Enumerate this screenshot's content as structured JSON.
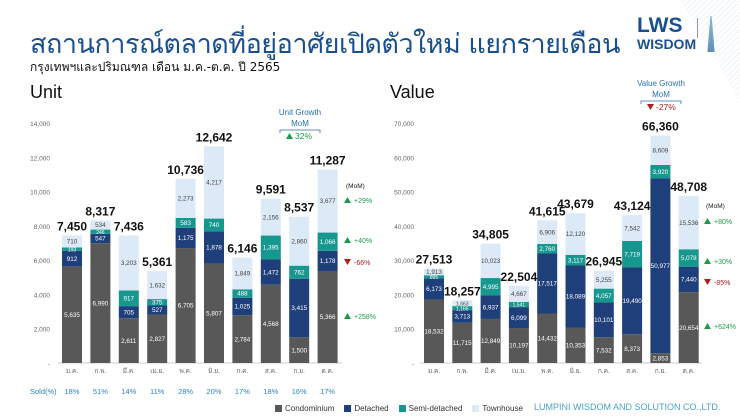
{
  "header": {
    "title": "สถานการณ์ตลาดที่อยู่อาศัยเปิดตัวใหม่ แยกรายเดือน",
    "subtitle": "กรุงเทพฯและปริมณฑล เดือน ม.ค.-ต.ค. ปี 2565",
    "logo_line1": "LWS",
    "logo_line2": "WISDOM"
  },
  "colors": {
    "Condominium": "#585858",
    "Detached": "#1f3f7a",
    "Semi-detached": "#17988f",
    "Townhouse": "#dce9f6",
    "title": "#1a4f8f",
    "up": "#1f9a4a",
    "down": "#b01e1e"
  },
  "legend": [
    "Condominium",
    "Detached",
    "Semi-detached",
    "Townhouse"
  ],
  "footer": "LUMPINI WISDOM AND SOLUTION CO.,LTD.",
  "chart_data": [
    {
      "type": "bar",
      "stacked": true,
      "title": "Unit",
      "categories": [
        "ม.ค.",
        "ก.พ.",
        "มี.ค.",
        "เม.ย.",
        "พ.ค.",
        "มิ.ย.",
        "ก.ค.",
        "ส.ค.",
        "ก.ย.",
        "ต.ค."
      ],
      "ylim": [
        0,
        14000
      ],
      "yticks": [
        "-",
        "2,000",
        "4,000",
        "6,000",
        "8,000",
        "10,000",
        "12,000",
        "14,000"
      ],
      "series": [
        {
          "name": "Condominium",
          "values": [
            5635,
            6990,
            2611,
            2827,
            6705,
            5807,
            2784,
            4568,
            1500,
            5366
          ],
          "labels": [
            "5,635",
            "6,990",
            "2,611",
            "2,827",
            "6,705",
            "5,807",
            "2,784",
            "4,568",
            "1,500",
            "5,366"
          ]
        },
        {
          "name": "Detached",
          "values": [
            912,
            547,
            705,
            527,
            1175,
            1878,
            1025,
            1472,
            3415,
            1178
          ],
          "labels": [
            "912",
            "547",
            "705",
            "527",
            "1,175",
            "1,878",
            "1,025",
            "1,472",
            "3,415",
            "1,178"
          ]
        },
        {
          "name": "Semi-detached",
          "values": [
            193,
            246,
            917,
            375,
            583,
            740,
            488,
            1395,
            762,
            1066
          ],
          "labels": [
            "193",
            "246",
            "917",
            "375",
            "583",
            "740",
            "488",
            "1,395",
            "762",
            "1,066"
          ]
        },
        {
          "name": "Townhouse",
          "values": [
            710,
            534,
            3203,
            1632,
            2273,
            4217,
            1849,
            2156,
            2860,
            3677
          ],
          "labels": [
            "710",
            "534",
            "3,203",
            "1,632",
            "2,273",
            "4,217",
            "1,849",
            "2,156",
            "2,860",
            "3,677"
          ]
        }
      ],
      "totals": [
        "7,450",
        "8,317",
        "7,436",
        "5,361",
        "10,736",
        "12,642",
        "6,146",
        "9,591",
        "8,537",
        "11,287"
      ],
      "sold_label": "Sold(%)",
      "sold": [
        "18%",
        "51%",
        "14%",
        "11%",
        "28%",
        "20%",
        "17%",
        "18%",
        "16%",
        "17%"
      ],
      "growth": {
        "title1": "Unit Growth",
        "title2": "MoM",
        "value": "32%",
        "direction": "up"
      },
      "mom_label": "(MoM)",
      "mom": [
        {
          "series": "Townhouse",
          "value": "+29%",
          "direction": "up"
        },
        {
          "series": "Semi-detached",
          "value": "+40%",
          "direction": "up"
        },
        {
          "series": "Detached",
          "value": "-66%",
          "direction": "down"
        },
        {
          "series": "Condominium",
          "value": "+258%",
          "direction": "up"
        }
      ]
    },
    {
      "type": "bar",
      "stacked": true,
      "title": "Value",
      "categories": [
        "ม.ค.",
        "ก.พ.",
        "มี.ค.",
        "เม.ย.",
        "พ.ค.",
        "มิ.ย.",
        "ก.ค.",
        "ส.ค.",
        "ก.ย.",
        "ต.ค."
      ],
      "ylim": [
        0,
        70000
      ],
      "yticks": [
        "-",
        "10,000",
        "20,000",
        "30,000",
        "40,000",
        "50,000",
        "60,000",
        "70,000"
      ],
      "series": [
        {
          "name": "Condominium",
          "values": [
            18532,
            11715,
            12849,
            10197,
            14432,
            10353,
            7532,
            8373,
            2853,
            20654
          ],
          "labels": [
            "18,532",
            "11,715",
            "12,849",
            "10,197",
            "14,432",
            "10,353",
            "7,532",
            "8,373",
            "2,853",
            "20,654"
          ]
        },
        {
          "name": "Detached",
          "values": [
            6173,
            3713,
            6937,
            6099,
            17517,
            18089,
            10101,
            19490,
            50977,
            7440
          ],
          "labels": [
            "6,173",
            "3,713",
            "6,937",
            "6,099",
            "17,517",
            "18,089",
            "10,101",
            "19,490",
            "50,977",
            "7,440"
          ]
        },
        {
          "name": "Semi-detached",
          "values": [
            895,
            1166,
            4995,
            1541,
            2760,
            3117,
            4057,
            7719,
            3920,
            5078
          ],
          "labels": [
            "895",
            "1,166",
            "4,995",
            "1,541",
            "2,760",
            "3,117",
            "4,057",
            "7,719",
            "3,920",
            "5,078"
          ]
        },
        {
          "name": "Townhouse",
          "values": [
            1913,
            1663,
            10023,
            4667,
            6906,
            12120,
            5255,
            7542,
            8609,
            15536
          ],
          "labels": [
            "1,913",
            "1,663",
            "10,023",
            "4,667",
            "6,906",
            "12,120",
            "5,255",
            "7,542",
            "8,609",
            "15,536"
          ]
        }
      ],
      "totals": [
        "27,513",
        "18,257",
        "34,805",
        "22,504",
        "41,615",
        "43,679",
        "26,945",
        "43,124",
        "66,360",
        "48,708"
      ],
      "growth": {
        "title1": "Value Growth",
        "title2": "MoM",
        "value": "-27%",
        "direction": "down"
      },
      "mom_label": "(MoM)",
      "mom": [
        {
          "series": "Townhouse",
          "value": "+80%",
          "direction": "up"
        },
        {
          "series": "Semi-detached",
          "value": "+30%",
          "direction": "up"
        },
        {
          "series": "Detached",
          "value": "-85%",
          "direction": "down"
        },
        {
          "series": "Condominium",
          "value": "+624%",
          "direction": "up"
        }
      ]
    }
  ]
}
